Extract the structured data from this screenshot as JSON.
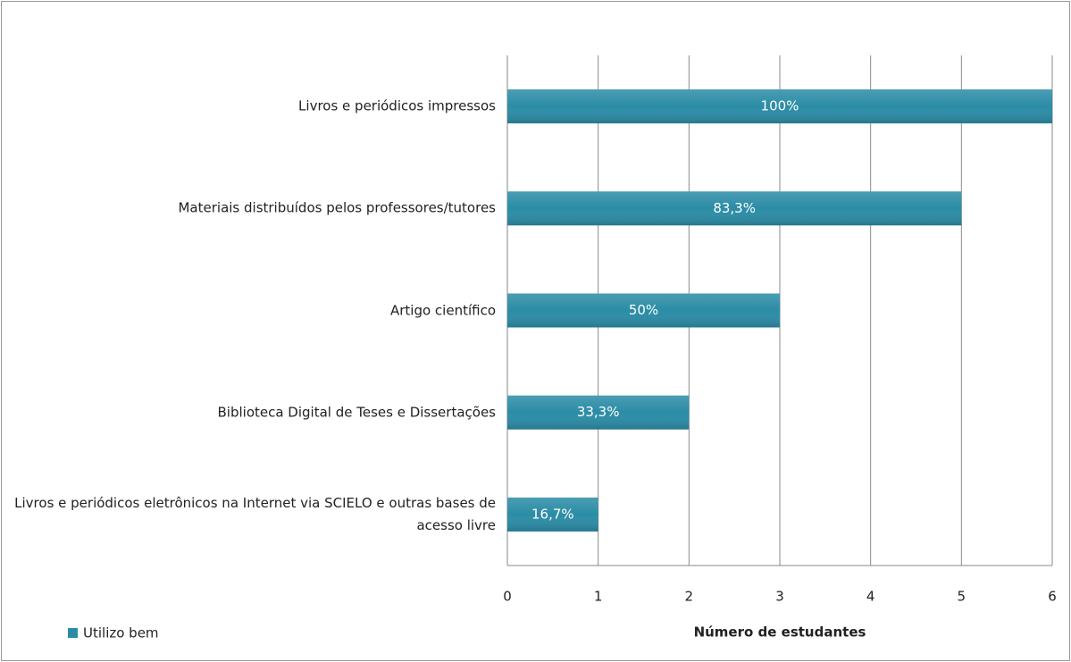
{
  "chart_data": {
    "type": "bar",
    "orientation": "horizontal",
    "categories": [
      "Livros e periódicos impressos",
      "Materiais distribuídos pelos professores/tutores",
      "Artigo científico",
      "Biblioteca Digital de Teses e Dissertações",
      "Livros e periódicos eletrônicos na Internet via SCIELO e outras bases de acesso livre"
    ],
    "series": [
      {
        "name": "Utilizo bem",
        "color": "#2b8ca6",
        "values": [
          6,
          5,
          3,
          2,
          1
        ],
        "value_labels": [
          "100%",
          "83,3%",
          "50%",
          "33,3%",
          "16,7%"
        ]
      }
    ],
    "xlabel": "Número de estudantes",
    "xlim": [
      0,
      6
    ],
    "xticks": [
      0,
      1,
      2,
      3,
      4,
      5,
      6
    ],
    "grid": true,
    "legend": "bottom-left"
  }
}
